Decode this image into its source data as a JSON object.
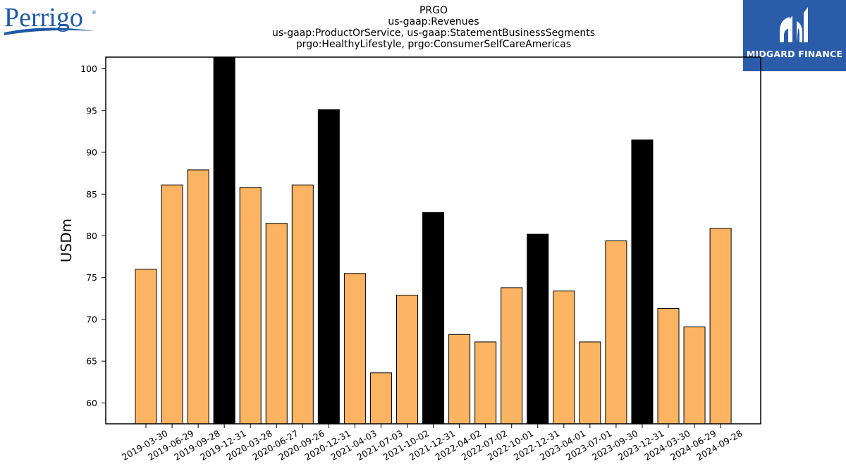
{
  "brand": {
    "left_logo_text": "Perrigo",
    "left_logo_mark": "®",
    "right_logo_text": "MIDGARD FINANCE",
    "brand_blue": "#1f5aa6",
    "right_logo_bg": "#2a5caa"
  },
  "chart_data": {
    "type": "bar",
    "title_lines": [
      "PRGO",
      "us-gaap:Revenues",
      "us-gaap:ProductOrService, us-gaap:StatementBusinessSegments",
      "prgo:HealthyLifestyle, prgo:ConsumerSelfCareAmericas"
    ],
    "xlabel": "",
    "ylabel": "USDm",
    "ylim": [
      57.5,
      101.4
    ],
    "yticks": [
      60,
      65,
      70,
      75,
      80,
      85,
      90,
      95,
      100
    ],
    "grid": false,
    "legend": "none",
    "colors": {
      "quarter": "#fdb462",
      "annual": "#000000",
      "edge": "#000000"
    },
    "categories": [
      "2019-03-30",
      "2019-06-29",
      "2019-09-28",
      "2019-12-31",
      "2020-03-28",
      "2020-06-27",
      "2020-09-26",
      "2020-12-31",
      "2021-04-03",
      "2021-07-03",
      "2021-10-02",
      "2021-12-31",
      "2022-04-02",
      "2022-07-02",
      "2022-10-01",
      "2022-12-31",
      "2023-04-01",
      "2023-07-01",
      "2023-09-30",
      "2023-12-31",
      "2024-03-30",
      "2024-06-29",
      "2024-09-28"
    ],
    "values": [
      76.0,
      86.1,
      87.9,
      101.4,
      85.8,
      81.5,
      86.1,
      95.1,
      75.5,
      63.6,
      72.9,
      82.8,
      68.2,
      67.3,
      73.8,
      80.2,
      73.4,
      67.3,
      79.4,
      91.5,
      71.3,
      69.1,
      80.9
    ],
    "annual_flags": [
      false,
      false,
      false,
      true,
      false,
      false,
      false,
      true,
      false,
      false,
      false,
      true,
      false,
      false,
      false,
      true,
      false,
      false,
      false,
      true,
      false,
      false,
      false
    ]
  }
}
